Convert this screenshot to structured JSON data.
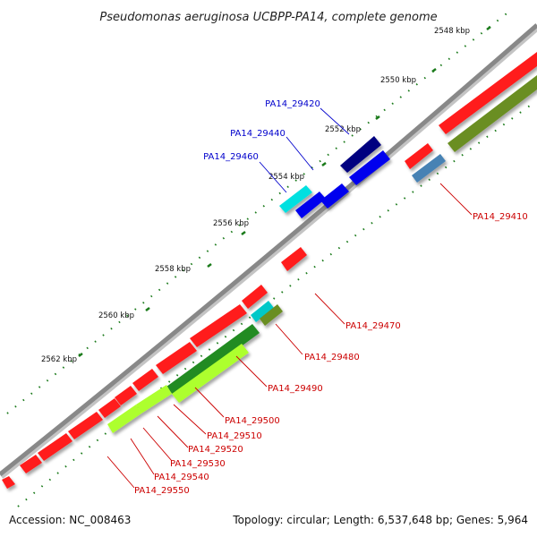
{
  "title": "Pseudomonas aeruginosa UCBPP-PA14, complete genome",
  "footer": {
    "accession": "Accession: NC_008463",
    "summary": "Topology: circular; Length: 6,537,648 bp; Genes: 5,964"
  },
  "kbp_ticks": [
    "2548 kbp",
    "2550 kbp",
    "2552 kbp",
    "2554 kbp",
    "2556 kbp",
    "2558 kbp",
    "2560 kbp",
    "2562 kbp"
  ],
  "gene_labels": {
    "blue": [
      "PA14_29420",
      "PA14_29440",
      "PA14_29460"
    ],
    "red": [
      "PA14_29410",
      "PA14_29470",
      "PA14_29480",
      "PA14_29490",
      "PA14_29500",
      "PA14_29510",
      "PA14_29520",
      "PA14_29530",
      "PA14_29540",
      "PA14_29550"
    ]
  },
  "colors": {
    "backbone": "#888888",
    "forward_gene": "#ff1a1a",
    "reverse_gene": "#0000ee",
    "navy_gene": "#000080",
    "cyan_gene": "#00e0e0",
    "steelblue_gene": "#4682b4",
    "olive_gene": "#6b8e23",
    "green_gene": "#228b22",
    "lightgreen_gene": "#adff2f",
    "label_red": "#cc0000",
    "label_blue": "#0000cc",
    "tick_green": "#1a7a1a"
  }
}
